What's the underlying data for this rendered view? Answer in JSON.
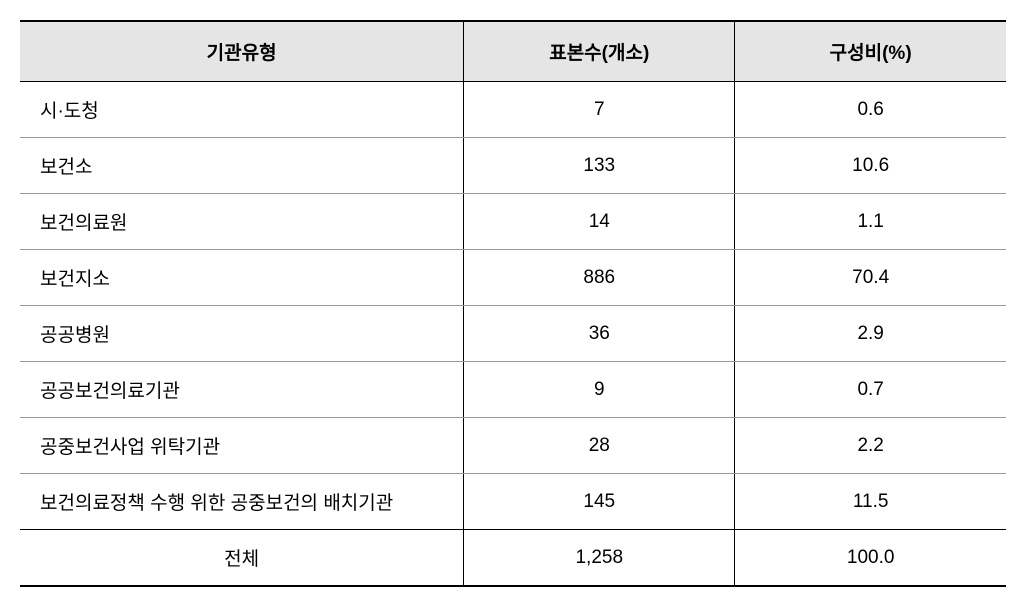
{
  "table": {
    "type": "table",
    "background_color": "#ffffff",
    "header_background": "#e5e5e5",
    "border_color": "#000000",
    "row_border_color": "#999999",
    "font_size": 19,
    "header_font_size": 19,
    "columns": [
      {
        "label": "기관유형",
        "width": "45%",
        "align": "left"
      },
      {
        "label": "표본수(개소)",
        "width": "27.5%",
        "align": "center"
      },
      {
        "label": "구성비(%)",
        "width": "27.5%",
        "align": "center"
      }
    ],
    "rows": [
      {
        "type": "시·도청",
        "count": "7",
        "ratio": "0.6"
      },
      {
        "type": "보건소",
        "count": "133",
        "ratio": "10.6"
      },
      {
        "type": "보건의료원",
        "count": "14",
        "ratio": "1.1"
      },
      {
        "type": "보건지소",
        "count": "886",
        "ratio": "70.4"
      },
      {
        "type": "공공병원",
        "count": "36",
        "ratio": "2.9"
      },
      {
        "type": "공공보건의료기관",
        "count": "9",
        "ratio": "0.7"
      },
      {
        "type": "공중보건사업 위탁기관",
        "count": "28",
        "ratio": "2.2"
      },
      {
        "type": "보건의료정책 수행 위한 공중보건의 배치기관",
        "count": "145",
        "ratio": "11.5"
      }
    ],
    "total": {
      "type": "전체",
      "count": "1,258",
      "ratio": "100.0"
    }
  }
}
